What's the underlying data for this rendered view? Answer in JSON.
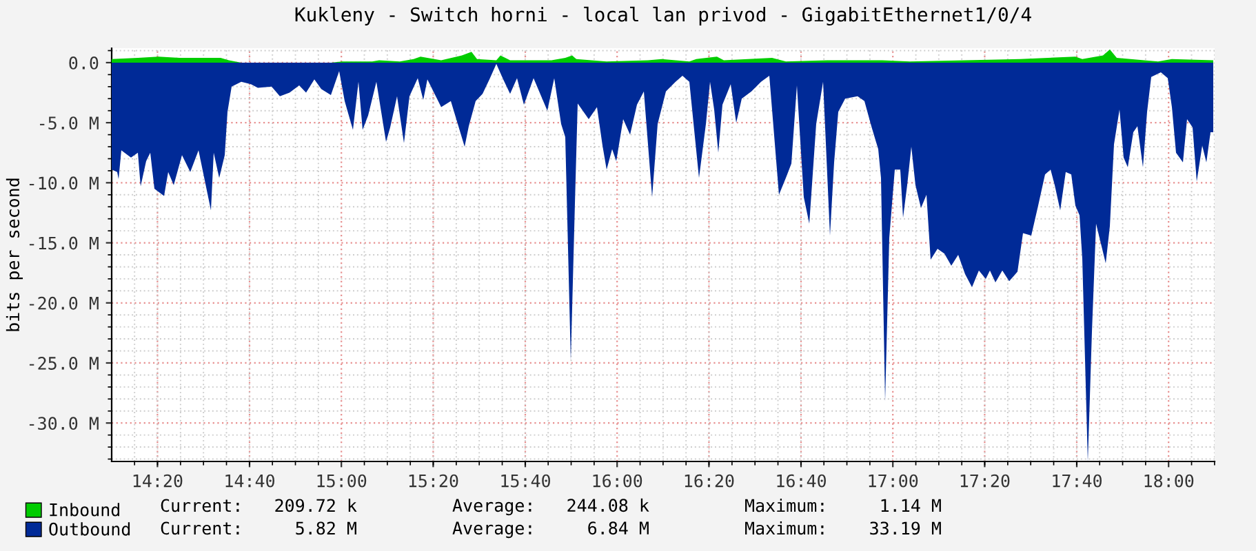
{
  "chart_data": {
    "type": "area",
    "title": "Kukleny - Switch horni - local lan privod - GigabitEthernet1/0/4",
    "ylabel": "bits per second",
    "xlim": [
      14.167,
      18.167
    ],
    "xticks": [
      {
        "value": 14.333,
        "label": "14:20"
      },
      {
        "value": 14.667,
        "label": "14:40"
      },
      {
        "value": 15,
        "label": "15:00"
      },
      {
        "value": 15.333,
        "label": "15:20"
      },
      {
        "value": 15.667,
        "label": "15:40"
      },
      {
        "value": 16,
        "label": "16:00"
      },
      {
        "value": 16.333,
        "label": "16:20"
      },
      {
        "value": 16.667,
        "label": "16:40"
      },
      {
        "value": 17,
        "label": "17:00"
      },
      {
        "value": 17.333,
        "label": "17:20"
      },
      {
        "value": 17.667,
        "label": "17:40"
      },
      {
        "value": 18,
        "label": "18:00"
      }
    ],
    "ylim": [
      -33.2,
      1.2
    ],
    "yticks": [
      {
        "value": 0,
        "label": "0.0"
      },
      {
        "value": -5,
        "label": "-5.0 M"
      },
      {
        "value": -10,
        "label": "-10.0 M"
      },
      {
        "value": -15,
        "label": "-15.0 M"
      },
      {
        "value": -20,
        "label": "-20.0 M"
      },
      {
        "value": -25,
        "label": "-25.0 M"
      },
      {
        "value": -30,
        "label": "-30.0 M"
      }
    ],
    "grid": true,
    "legend": "bottom",
    "series": [
      {
        "name": "Inbound",
        "color": "#00cc00",
        "x": [
          14.167,
          14.262,
          14.337,
          14.412,
          14.562,
          14.592,
          14.637,
          14.962,
          15.002,
          15.112,
          15.137,
          15.212,
          15.262,
          15.287,
          15.312,
          15.362,
          15.437,
          15.472,
          15.492,
          15.562,
          15.577,
          15.612,
          15.762,
          15.812,
          15.837,
          15.852,
          15.962,
          16.112,
          16.162,
          16.262,
          16.287,
          16.362,
          16.387,
          16.562,
          16.612,
          16.762,
          16.962,
          17.062,
          17.262,
          17.462,
          17.662,
          17.687,
          17.762,
          17.787,
          17.812,
          17.962,
          18.012,
          18.162
        ],
        "values": [
          0.3,
          0.4,
          0.5,
          0.4,
          0.4,
          0.2,
          0,
          0,
          0.1,
          0.1,
          0.2,
          0.1,
          0.3,
          0.5,
          0.4,
          0.2,
          0.6,
          0.9,
          0.3,
          0.2,
          0.6,
          0.2,
          0.2,
          0.4,
          0.6,
          0.3,
          0.1,
          0.2,
          0.3,
          0.1,
          0.3,
          0.5,
          0.2,
          0.4,
          0.1,
          0.2,
          0.2,
          0.1,
          0.2,
          0.3,
          0.5,
          0.3,
          0.6,
          1.1,
          0.4,
          0.1,
          0.3,
          0.2
        ]
      },
      {
        "name": "Outbound",
        "color": "#002a97",
        "x": [
          14.167,
          14.187,
          14.192,
          14.202,
          14.237,
          14.262,
          14.272,
          14.292,
          14.307,
          14.322,
          14.357,
          14.372,
          14.392,
          14.422,
          14.452,
          14.482,
          14.527,
          14.537,
          14.557,
          14.577,
          14.587,
          14.602,
          14.637,
          14.672,
          14.697,
          14.747,
          14.777,
          14.812,
          14.847,
          14.872,
          14.902,
          14.927,
          14.962,
          14.992,
          15.012,
          15.042,
          15.062,
          15.077,
          15.097,
          15.127,
          15.162,
          15.177,
          15.202,
          15.227,
          15.247,
          15.277,
          15.297,
          15.312,
          15.362,
          15.397,
          15.447,
          15.462,
          15.487,
          15.512,
          15.537,
          15.562,
          15.587,
          15.612,
          15.637,
          15.662,
          15.697,
          15.747,
          15.772,
          15.797,
          15.812,
          15.832,
          15.847,
          15.857,
          15.897,
          15.927,
          15.947,
          15.962,
          15.982,
          15.997,
          16.022,
          16.047,
          16.072,
          16.097,
          16.127,
          16.147,
          16.177,
          16.212,
          16.237,
          16.262,
          16.297,
          16.322,
          16.337,
          16.352,
          16.367,
          16.382,
          16.412,
          16.432,
          16.452,
          16.487,
          16.522,
          16.552,
          16.587,
          16.612,
          16.632,
          16.652,
          16.677,
          16.697,
          16.722,
          16.747,
          16.772,
          16.787,
          16.802,
          16.827,
          16.872,
          16.897,
          16.922,
          16.947,
          16.957,
          16.972,
          16.987,
          17.007,
          17.027,
          17.037,
          17.052,
          17.067,
          17.082,
          17.102,
          17.122,
          17.137,
          17.162,
          17.187,
          17.212,
          17.237,
          17.262,
          17.287,
          17.312,
          17.337,
          17.352,
          17.372,
          17.397,
          17.422,
          17.452,
          17.472,
          17.502,
          17.527,
          17.552,
          17.572,
          17.587,
          17.607,
          17.627,
          17.647,
          17.662,
          17.677,
          17.687,
          17.707,
          17.722,
          17.737,
          17.757,
          17.772,
          17.787,
          17.802,
          17.822,
          17.837,
          17.852,
          17.872,
          17.887,
          17.907,
          17.922,
          17.937,
          17.972,
          17.997,
          18.012,
          18.027,
          18.052,
          18.067,
          18.087,
          18.102,
          18.122,
          18.137,
          18.152,
          18.162
        ],
        "values": [
          -8.9,
          -9.1,
          -9.7,
          -7.3,
          -7.9,
          -7.5,
          -10.3,
          -8.2,
          -7.5,
          -10.5,
          -11.1,
          -9.1,
          -10.2,
          -7.7,
          -9.1,
          -7.3,
          -12.3,
          -7.5,
          -9.6,
          -7.7,
          -4.1,
          -2.0,
          -1.6,
          -1.8,
          -2.1,
          -2.0,
          -2.8,
          -2.5,
          -1.9,
          -2.5,
          -1.4,
          -2.2,
          -2.7,
          -0.7,
          -3.2,
          -5.6,
          -1.6,
          -5.6,
          -4.4,
          -1.6,
          -6.6,
          -5.4,
          -2.8,
          -6.7,
          -2.8,
          -1.3,
          -3.1,
          -1.4,
          -3.7,
          -3.2,
          -7.0,
          -5.3,
          -3.2,
          -2.6,
          -1.4,
          -0.1,
          -1.4,
          -2.6,
          -1.3,
          -3.5,
          -1.3,
          -4.0,
          -1.3,
          -5.1,
          -6.2,
          -24.8,
          -11.7,
          -3.4,
          -4.7,
          -3.7,
          -6.9,
          -8.9,
          -7.2,
          -8.2,
          -4.7,
          -6.0,
          -3.5,
          -2.4,
          -11.2,
          -5.1,
          -2.4,
          -1.6,
          -1.1,
          -1.6,
          -9.6,
          -5.1,
          -1.6,
          -3.9,
          -7.5,
          -3.5,
          -1.8,
          -5.0,
          -3.0,
          -2.4,
          -1.6,
          -1.1,
          -11.0,
          -9.6,
          -8.4,
          -1.9,
          -11.2,
          -13.4,
          -5.1,
          -1.6,
          -14.4,
          -8.3,
          -4.1,
          -3.0,
          -2.8,
          -3.2,
          -5.3,
          -7.2,
          -9.6,
          -28.2,
          -14.6,
          -8.9,
          -8.9,
          -12.9,
          -10.2,
          -7.0,
          -10.2,
          -12.1,
          -11.0,
          -16.4,
          -15.5,
          -15.9,
          -16.9,
          -16.0,
          -17.6,
          -18.7,
          -17.3,
          -18.0,
          -17.3,
          -18.3,
          -17.3,
          -18.2,
          -17.4,
          -14.2,
          -14.4,
          -11.9,
          -9.3,
          -8.9,
          -10.2,
          -12.3,
          -9.1,
          -9.3,
          -11.9,
          -12.7,
          -16.3,
          -33.2,
          -22.4,
          -13.4,
          -15.3,
          -16.7,
          -13.6,
          -6.8,
          -3.9,
          -7.9,
          -8.7,
          -5.8,
          -5.3,
          -8.7,
          -4.1,
          -1.2,
          -0.8,
          -1.3,
          -3.7,
          -7.5,
          -8.3,
          -4.7,
          -5.4,
          -9.9,
          -6.9,
          -8.3,
          -5.8,
          -5.8
        ]
      }
    ],
    "annotations": [
      "Current:   209.72 k",
      "Average:   244.08 k",
      "Maximum:     1.14 M",
      "Current:     5.82 M",
      "Average:     6.84 M",
      "Maximum:    33.19 M"
    ]
  }
}
